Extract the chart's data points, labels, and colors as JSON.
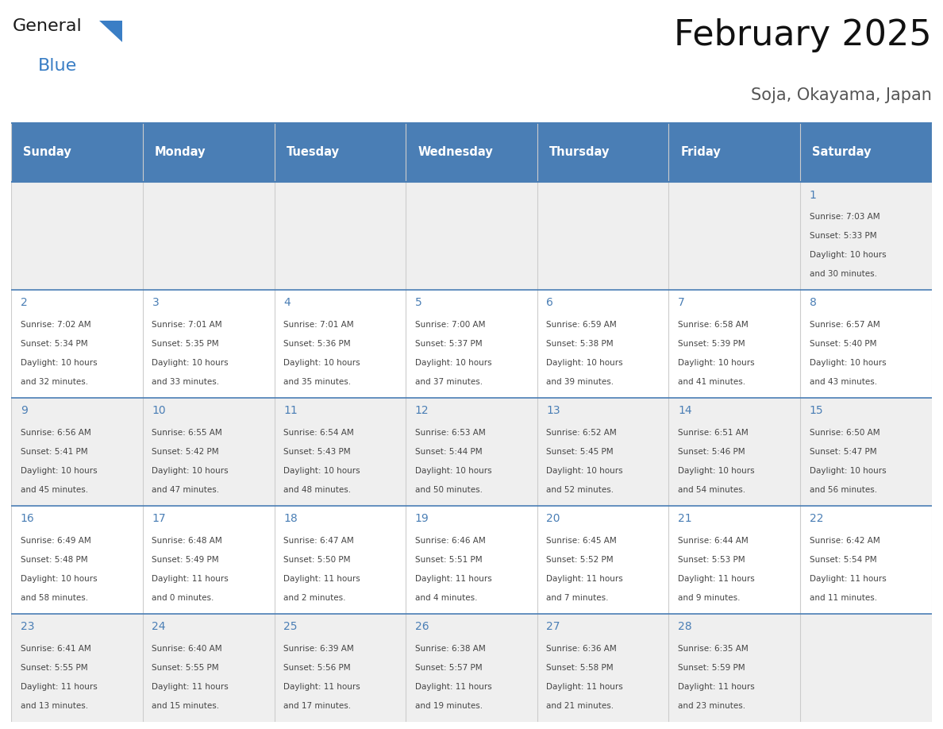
{
  "title": "February 2025",
  "subtitle": "Soja, Okayama, Japan",
  "days_of_week": [
    "Sunday",
    "Monday",
    "Tuesday",
    "Wednesday",
    "Thursday",
    "Friday",
    "Saturday"
  ],
  "header_bg": "#4a7eb5",
  "header_text": "#ffffff",
  "row_bg_odd": "#efefef",
  "row_bg_even": "#ffffff",
  "border_color": "#4a7eb5",
  "sep_color": "#4a7eb5",
  "day_num_color": "#4a7eb5",
  "text_color": "#444444",
  "calendar_data": [
    {
      "day": 1,
      "col": 6,
      "row": 0,
      "sunrise": "7:03 AM",
      "sunset": "5:33 PM",
      "daylight_h": "10 hours",
      "daylight_m": "and 30 minutes."
    },
    {
      "day": 2,
      "col": 0,
      "row": 1,
      "sunrise": "7:02 AM",
      "sunset": "5:34 PM",
      "daylight_h": "10 hours",
      "daylight_m": "and 32 minutes."
    },
    {
      "day": 3,
      "col": 1,
      "row": 1,
      "sunrise": "7:01 AM",
      "sunset": "5:35 PM",
      "daylight_h": "10 hours",
      "daylight_m": "and 33 minutes."
    },
    {
      "day": 4,
      "col": 2,
      "row": 1,
      "sunrise": "7:01 AM",
      "sunset": "5:36 PM",
      "daylight_h": "10 hours",
      "daylight_m": "and 35 minutes."
    },
    {
      "day": 5,
      "col": 3,
      "row": 1,
      "sunrise": "7:00 AM",
      "sunset": "5:37 PM",
      "daylight_h": "10 hours",
      "daylight_m": "and 37 minutes."
    },
    {
      "day": 6,
      "col": 4,
      "row": 1,
      "sunrise": "6:59 AM",
      "sunset": "5:38 PM",
      "daylight_h": "10 hours",
      "daylight_m": "and 39 minutes."
    },
    {
      "day": 7,
      "col": 5,
      "row": 1,
      "sunrise": "6:58 AM",
      "sunset": "5:39 PM",
      "daylight_h": "10 hours",
      "daylight_m": "and 41 minutes."
    },
    {
      "day": 8,
      "col": 6,
      "row": 1,
      "sunrise": "6:57 AM",
      "sunset": "5:40 PM",
      "daylight_h": "10 hours",
      "daylight_m": "and 43 minutes."
    },
    {
      "day": 9,
      "col": 0,
      "row": 2,
      "sunrise": "6:56 AM",
      "sunset": "5:41 PM",
      "daylight_h": "10 hours",
      "daylight_m": "and 45 minutes."
    },
    {
      "day": 10,
      "col": 1,
      "row": 2,
      "sunrise": "6:55 AM",
      "sunset": "5:42 PM",
      "daylight_h": "10 hours",
      "daylight_m": "and 47 minutes."
    },
    {
      "day": 11,
      "col": 2,
      "row": 2,
      "sunrise": "6:54 AM",
      "sunset": "5:43 PM",
      "daylight_h": "10 hours",
      "daylight_m": "and 48 minutes."
    },
    {
      "day": 12,
      "col": 3,
      "row": 2,
      "sunrise": "6:53 AM",
      "sunset": "5:44 PM",
      "daylight_h": "10 hours",
      "daylight_m": "and 50 minutes."
    },
    {
      "day": 13,
      "col": 4,
      "row": 2,
      "sunrise": "6:52 AM",
      "sunset": "5:45 PM",
      "daylight_h": "10 hours",
      "daylight_m": "and 52 minutes."
    },
    {
      "day": 14,
      "col": 5,
      "row": 2,
      "sunrise": "6:51 AM",
      "sunset": "5:46 PM",
      "daylight_h": "10 hours",
      "daylight_m": "and 54 minutes."
    },
    {
      "day": 15,
      "col": 6,
      "row": 2,
      "sunrise": "6:50 AM",
      "sunset": "5:47 PM",
      "daylight_h": "10 hours",
      "daylight_m": "and 56 minutes."
    },
    {
      "day": 16,
      "col": 0,
      "row": 3,
      "sunrise": "6:49 AM",
      "sunset": "5:48 PM",
      "daylight_h": "10 hours",
      "daylight_m": "and 58 minutes."
    },
    {
      "day": 17,
      "col": 1,
      "row": 3,
      "sunrise": "6:48 AM",
      "sunset": "5:49 PM",
      "daylight_h": "11 hours",
      "daylight_m": "and 0 minutes."
    },
    {
      "day": 18,
      "col": 2,
      "row": 3,
      "sunrise": "6:47 AM",
      "sunset": "5:50 PM",
      "daylight_h": "11 hours",
      "daylight_m": "and 2 minutes."
    },
    {
      "day": 19,
      "col": 3,
      "row": 3,
      "sunrise": "6:46 AM",
      "sunset": "5:51 PM",
      "daylight_h": "11 hours",
      "daylight_m": "and 4 minutes."
    },
    {
      "day": 20,
      "col": 4,
      "row": 3,
      "sunrise": "6:45 AM",
      "sunset": "5:52 PM",
      "daylight_h": "11 hours",
      "daylight_m": "and 7 minutes."
    },
    {
      "day": 21,
      "col": 5,
      "row": 3,
      "sunrise": "6:44 AM",
      "sunset": "5:53 PM",
      "daylight_h": "11 hours",
      "daylight_m": "and 9 minutes."
    },
    {
      "day": 22,
      "col": 6,
      "row": 3,
      "sunrise": "6:42 AM",
      "sunset": "5:54 PM",
      "daylight_h": "11 hours",
      "daylight_m": "and 11 minutes."
    },
    {
      "day": 23,
      "col": 0,
      "row": 4,
      "sunrise": "6:41 AM",
      "sunset": "5:55 PM",
      "daylight_h": "11 hours",
      "daylight_m": "and 13 minutes."
    },
    {
      "day": 24,
      "col": 1,
      "row": 4,
      "sunrise": "6:40 AM",
      "sunset": "5:55 PM",
      "daylight_h": "11 hours",
      "daylight_m": "and 15 minutes."
    },
    {
      "day": 25,
      "col": 2,
      "row": 4,
      "sunrise": "6:39 AM",
      "sunset": "5:56 PM",
      "daylight_h": "11 hours",
      "daylight_m": "and 17 minutes."
    },
    {
      "day": 26,
      "col": 3,
      "row": 4,
      "sunrise": "6:38 AM",
      "sunset": "5:57 PM",
      "daylight_h": "11 hours",
      "daylight_m": "and 19 minutes."
    },
    {
      "day": 27,
      "col": 4,
      "row": 4,
      "sunrise": "6:36 AM",
      "sunset": "5:58 PM",
      "daylight_h": "11 hours",
      "daylight_m": "and 21 minutes."
    },
    {
      "day": 28,
      "col": 5,
      "row": 4,
      "sunrise": "6:35 AM",
      "sunset": "5:59 PM",
      "daylight_h": "11 hours",
      "daylight_m": "and 23 minutes."
    }
  ],
  "num_rows": 5,
  "logo_general_color": "#1a1a1a",
  "logo_blue_color": "#3a7ec5",
  "logo_triangle_color": "#3a7ec5"
}
